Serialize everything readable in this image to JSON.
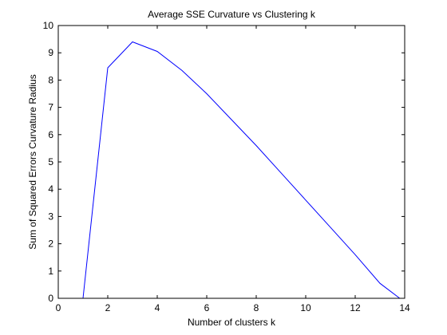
{
  "chart_data": {
    "type": "line",
    "title": "Average SSE Curvature vs Clustering k",
    "xlabel": "Number of clusters k",
    "ylabel": "Sum of Squared Errors Curvature Radius",
    "xlim": [
      0,
      14
    ],
    "ylim": [
      0,
      10
    ],
    "xticks": [
      0,
      2,
      4,
      6,
      8,
      10,
      12,
      14
    ],
    "yticks": [
      0,
      1,
      2,
      3,
      4,
      5,
      6,
      7,
      8,
      9,
      10
    ],
    "grid": false,
    "line_color": "#0000ff",
    "series": [
      {
        "x": [
          1,
          2,
          3,
          4,
          5,
          6,
          7,
          8,
          9,
          10,
          11,
          12,
          13,
          13.8
        ],
        "y": [
          0,
          8.45,
          9.4,
          9.05,
          8.35,
          7.5,
          6.55,
          5.6,
          4.6,
          3.6,
          2.6,
          1.6,
          0.55,
          0
        ]
      }
    ]
  }
}
